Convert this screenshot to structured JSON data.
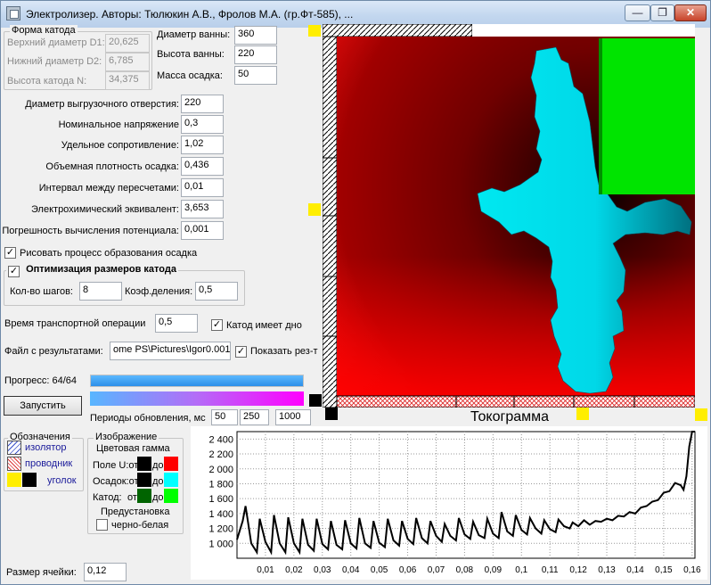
{
  "window": {
    "title": "Электролизер. Авторы: Тюлюкин А.В., Фролов М.А. (гр.Фт-585), ...",
    "min_label": "—",
    "max_label": "❐",
    "close_label": "✕"
  },
  "cathode_shape": {
    "group_title": "Форма катода",
    "upper_diameter_label": "Верхний диаметр D1:",
    "upper_diameter_value": "20,625",
    "lower_diameter_label": "Нижний диаметр D2:",
    "lower_diameter_value": "6,785",
    "height_label": "Высота катода N:",
    "height_value": "34,375"
  },
  "bath": {
    "diameter_label": "Диаметр ванны:",
    "diameter_value": "360",
    "height_label": "Высота ванны:",
    "height_value": "220",
    "mass_label": "Масса осадка:",
    "mass_value": "50"
  },
  "params": [
    {
      "label": "Диаметр выгрузочного отверстия:",
      "value": "220"
    },
    {
      "label": "Номинальное напряжение",
      "value": "0,3"
    },
    {
      "label": "Удельное сопротивление:",
      "value": "1,02"
    },
    {
      "label": "Объемная плотность осадка:",
      "value": "0,436"
    },
    {
      "label": "Интервал между пересчетами:",
      "value": "0,01"
    },
    {
      "label": "Электрохимический эквивалент:",
      "value": "3,653"
    },
    {
      "label": "Погрешность вычисления потенциала:",
      "value": "0,001"
    }
  ],
  "draw_process": {
    "label": "Рисовать процесс образования осадка",
    "checked": true
  },
  "optimization": {
    "title": "Оптимизация размеров катода",
    "checked": true,
    "steps_label": "Кол-во шагов:",
    "steps_value": "8",
    "coef_label": "Коэф.деления:",
    "coef_value": "0,5"
  },
  "transport": {
    "label": "Время транспортной операции",
    "value": "0,5"
  },
  "cathode_bottom": {
    "label": "Катод имеет дно",
    "checked": true
  },
  "results_file": {
    "label": "Файл с результатами:",
    "value": "ome PS\\Pictures\\Igor0.001"
  },
  "show_results": {
    "label": "Показать рез-т",
    "checked": true
  },
  "progress": {
    "label": "Прогресс: 64/64",
    "fraction": 1.0
  },
  "start_button": "Запустить",
  "update_periods": {
    "label": "Периоды обновления, мс",
    "v1": "50",
    "v2": "250",
    "v3": "1000"
  },
  "legend": {
    "title": "Обозначения",
    "insulator": "изолятор",
    "conductor": "проводник",
    "corner": "уголок"
  },
  "image_group": {
    "title": "Изображение",
    "subtitle": "Цветовая гамма",
    "field_label": "Поле U:от",
    "deposit_label": "Осадок:от",
    "cathode_label": "Катод:",
    "cathode_from": "от",
    "to_label": "до",
    "preset_label": "Предустановка",
    "bw_label": "черно-белая",
    "bw_checked": false,
    "colors": {
      "field_from": "#000000",
      "field_to": "#ff0000",
      "deposit_from": "#000000",
      "deposit_to": "#00ffff",
      "cathode_from": "#006400",
      "cathode_to": "#00ff00"
    }
  },
  "cell_size": {
    "label": "Размер ячейки:",
    "value": "0,12"
  },
  "tokogramma_title": "Токограмма",
  "chart_data": {
    "type": "line",
    "title": "Токограмма",
    "xlabel": "",
    "ylabel": "",
    "xlim": [
      0,
      0.161
    ],
    "ylim": [
      800,
      2500
    ],
    "x_ticks": [
      "0,01",
      "0,02",
      "0,03",
      "0,04",
      "0,05",
      "0,06",
      "0,07",
      "0,08",
      "0,09",
      "0,1",
      "0,11",
      "0,12",
      "0,13",
      "0,14",
      "0,15",
      "0,16"
    ],
    "x_tick_values": [
      0.01,
      0.02,
      0.03,
      0.04,
      0.05,
      0.06,
      0.07,
      0.08,
      0.09,
      0.1,
      0.11,
      0.12,
      0.13,
      0.14,
      0.15,
      0.16
    ],
    "y_ticks": [
      "1 000",
      "1 200",
      "1 400",
      "1 600",
      "1 800",
      "2 000",
      "2 200",
      "2 400"
    ],
    "y_tick_values": [
      1000,
      1200,
      1400,
      1600,
      1800,
      2000,
      2200,
      2400
    ],
    "grid": true,
    "series": [
      {
        "x": [
          0,
          0.002,
          0.003,
          0.005,
          0.007,
          0.008,
          0.01,
          0.012,
          0.013,
          0.015,
          0.017,
          0.018,
          0.02,
          0.022,
          0.023,
          0.025,
          0.027,
          0.028,
          0.03,
          0.032,
          0.033,
          0.035,
          0.037,
          0.038,
          0.04,
          0.042,
          0.043,
          0.045,
          0.047,
          0.048,
          0.05,
          0.052,
          0.053,
          0.055,
          0.057,
          0.058,
          0.06,
          0.062,
          0.063,
          0.065,
          0.067,
          0.068,
          0.07,
          0.072,
          0.073,
          0.075,
          0.077,
          0.078,
          0.08,
          0.082,
          0.083,
          0.085,
          0.087,
          0.088,
          0.09,
          0.092,
          0.093,
          0.095,
          0.097,
          0.098,
          0.1,
          0.102,
          0.103,
          0.105,
          0.107,
          0.108,
          0.11,
          0.112,
          0.113,
          0.115,
          0.117,
          0.118,
          0.12,
          0.122,
          0.124,
          0.126,
          0.128,
          0.13,
          0.132,
          0.134,
          0.136,
          0.138,
          0.14,
          0.142,
          0.144,
          0.146,
          0.148,
          0.15,
          0.152,
          0.154,
          0.156,
          0.157,
          0.158,
          0.159,
          0.16,
          0.161
        ],
        "y": [
          1050,
          1300,
          1500,
          1000,
          880,
          1330,
          1020,
          880,
          1380,
          1000,
          880,
          1350,
          1000,
          880,
          1330,
          980,
          900,
          1330,
          990,
          920,
          1300,
          980,
          920,
          1310,
          1000,
          930,
          1340,
          1000,
          940,
          1300,
          1010,
          950,
          1330,
          1040,
          970,
          1300,
          1060,
          990,
          1340,
          1070,
          1000,
          1300,
          1100,
          1020,
          1260,
          1100,
          1040,
          1340,
          1120,
          1060,
          1290,
          1110,
          1070,
          1330,
          1130,
          1070,
          1420,
          1160,
          1100,
          1380,
          1180,
          1120,
          1340,
          1200,
          1130,
          1310,
          1190,
          1150,
          1320,
          1230,
          1200,
          1280,
          1230,
          1310,
          1250,
          1300,
          1290,
          1330,
          1310,
          1370,
          1360,
          1420,
          1400,
          1480,
          1500,
          1560,
          1580,
          1680,
          1700,
          1810,
          1780,
          1720,
          1900,
          2300,
          2500,
          2500
        ]
      }
    ]
  }
}
